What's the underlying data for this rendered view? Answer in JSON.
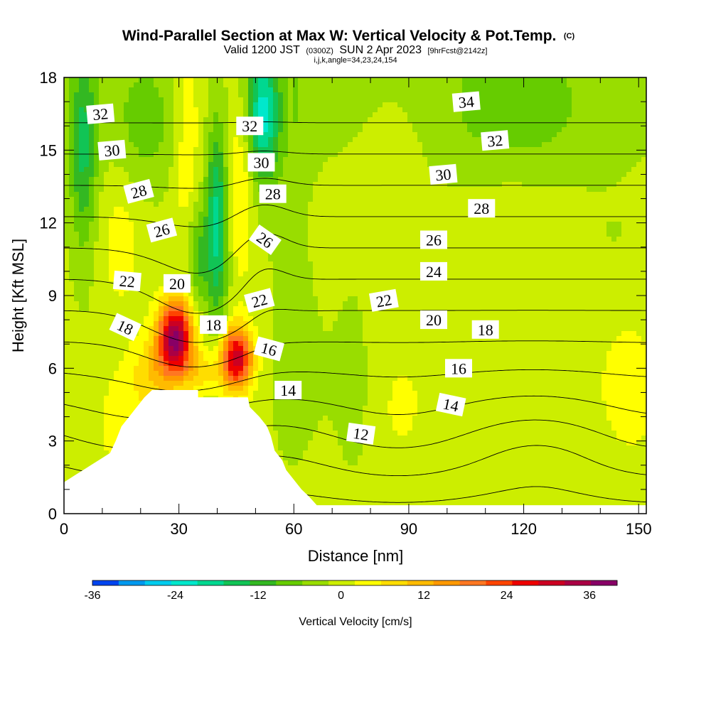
{
  "chart_data": {
    "type": "heatmap",
    "title": {
      "main": "Wind-Parallel Section at Max W: Vertical Velocity & Pot.Temp.",
      "copyright": "(C)",
      "valid_prefix": "Valid 1200 JST",
      "valid_utc": "(0300Z)",
      "valid_date": "SUN 2 Apr 2023",
      "forecast": "[9hrFcst@2142z]",
      "indices": "i,j,k,angle=34,23,24,154"
    },
    "xlabel": "Distance [nm]",
    "ylabel": "Height [Kft MSL]",
    "xlim": [
      0,
      152
    ],
    "ylim": [
      0,
      18
    ],
    "xticks": [
      "0",
      "30",
      "60",
      "90",
      "120",
      "150"
    ],
    "yticks": [
      "0",
      "3",
      "6",
      "9",
      "12",
      "15",
      "18"
    ],
    "xtick_values": [
      0,
      30,
      60,
      90,
      120,
      150
    ],
    "ytick_values": [
      0,
      3,
      6,
      9,
      12,
      15,
      18
    ],
    "colorbar": {
      "title": "Vertical Velocity [cm/s]",
      "min": -36,
      "max": 40,
      "step": 4,
      "labels": [
        "-36",
        "-24",
        "-12",
        "0",
        "12",
        "24",
        "36"
      ],
      "label_values": [
        -36,
        -24,
        -12,
        0,
        12,
        24,
        36
      ],
      "colors": [
        "#0000ee",
        "#0044ee",
        "#0099ee",
        "#00ccee",
        "#00e8cc",
        "#00d890",
        "#11c455",
        "#33b822",
        "#66cc00",
        "#99dd00",
        "#ccee00",
        "#ffff00",
        "#ffdd00",
        "#ffbb00",
        "#ff9900",
        "#ff7722",
        "#ff4400",
        "#ee0000",
        "#cc0022",
        "#aa0044",
        "#880066",
        "#660099"
      ]
    },
    "terrain_profile": [
      [
        0,
        1.3
      ],
      [
        3,
        1.6
      ],
      [
        6,
        1.9
      ],
      [
        9,
        2.2
      ],
      [
        12,
        2.5
      ],
      [
        13.5,
        3.0
      ],
      [
        15,
        3.6
      ],
      [
        17,
        4.0
      ],
      [
        19,
        4.4
      ],
      [
        21,
        4.8
      ],
      [
        23,
        5.1
      ],
      [
        26,
        5.1
      ],
      [
        28,
        5.1
      ],
      [
        35,
        5.1
      ],
      [
        35,
        4.8
      ],
      [
        40,
        4.8
      ],
      [
        45,
        4.8
      ],
      [
        48,
        4.8
      ],
      [
        48.5,
        4.4
      ],
      [
        51,
        4.0
      ],
      [
        53,
        3.6
      ],
      [
        54,
        3.2
      ],
      [
        55,
        2.6
      ],
      [
        57,
        2.2
      ],
      [
        58,
        1.8
      ],
      [
        60,
        1.4
      ],
      [
        62,
        1.0
      ],
      [
        64,
        0.7
      ],
      [
        66,
        0.35
      ],
      [
        68,
        0.35
      ],
      [
        70,
        0.35
      ],
      [
        150,
        0.35
      ]
    ],
    "vertical_velocity_features": [
      {
        "x": 29,
        "z": 7.2,
        "sx": 3.2,
        "sz": 1.1,
        "amp": 40
      },
      {
        "x": 45,
        "z": 6.4,
        "sx": 3.0,
        "sz": 0.9,
        "amp": 33
      },
      {
        "x": 22,
        "z": 5.6,
        "sx": 4.5,
        "sz": 1.2,
        "amp": 10
      },
      {
        "x": 36,
        "z": 5.8,
        "sx": 3.0,
        "sz": 0.6,
        "amp": 7
      },
      {
        "x": 13,
        "z": 4.0,
        "sx": 3.0,
        "sz": 1.5,
        "amp": 5
      },
      {
        "x": 32,
        "z": 15.0,
        "sx": 2.5,
        "sz": 3.5,
        "amp": 6
      },
      {
        "x": 40,
        "z": 12.0,
        "sx": 2.0,
        "sz": 3.0,
        "amp": -18
      },
      {
        "x": 35,
        "z": 10.5,
        "sx": 2.0,
        "sz": 1.5,
        "amp": -10
      },
      {
        "x": 52,
        "z": 16.5,
        "sx": 3.0,
        "sz": 2.0,
        "amp": -22
      },
      {
        "x": 46,
        "z": 13.0,
        "sx": 2.5,
        "sz": 2.5,
        "amp": 8
      },
      {
        "x": 5,
        "z": 15.0,
        "sx": 2.5,
        "sz": 3.0,
        "amp": -14
      },
      {
        "x": 22,
        "z": 16.0,
        "sx": 6.0,
        "sz": 2.0,
        "amp": -6
      },
      {
        "x": 15,
        "z": 11.0,
        "sx": 3.0,
        "sz": 2.0,
        "amp": 4
      },
      {
        "x": 60,
        "z": 10.0,
        "sx": 4.0,
        "sz": 6.0,
        "amp": -4
      },
      {
        "x": 85,
        "z": 13.0,
        "sx": 6.0,
        "sz": 2.5,
        "amp": 3
      },
      {
        "x": 118,
        "z": 16.5,
        "sx": 18.0,
        "sz": 1.8,
        "amp": -5
      },
      {
        "x": 148,
        "z": 5.0,
        "sx": 5.0,
        "sz": 2.0,
        "amp": 5
      },
      {
        "x": 88,
        "z": 4.0,
        "sx": 4.0,
        "sz": 1.5,
        "amp": 3
      },
      {
        "x": 110,
        "z": 7.0,
        "sx": 8.0,
        "sz": 2.0,
        "amp": 2
      },
      {
        "x": 75,
        "z": 5.5,
        "sx": 3.0,
        "sz": 3.0,
        "amp": -3
      }
    ],
    "pot_temp_contour_values": [
      10,
      12,
      14,
      16,
      18,
      20,
      22,
      24,
      26,
      28,
      30,
      32,
      34
    ],
    "pot_temp_labels": [
      {
        "text": "32",
        "x": 9.5,
        "z": 16.5,
        "angle": 5
      },
      {
        "text": "30",
        "x": 12.5,
        "z": 15.0,
        "angle": 5
      },
      {
        "text": "28",
        "x": 19.5,
        "z": 13.3,
        "angle": 15
      },
      {
        "text": "26",
        "x": 25.5,
        "z": 11.7,
        "angle": 15
      },
      {
        "text": "22",
        "x": 16.5,
        "z": 9.6,
        "angle": -5
      },
      {
        "text": "20",
        "x": 29.5,
        "z": 9.5,
        "angle": 0
      },
      {
        "text": "18",
        "x": 16.0,
        "z": 7.7,
        "angle": -25
      },
      {
        "text": "32",
        "x": 48.5,
        "z": 16.0,
        "angle": 0
      },
      {
        "text": "30",
        "x": 51.5,
        "z": 14.5,
        "angle": 0
      },
      {
        "text": "28",
        "x": 54.5,
        "z": 13.2,
        "angle": 0
      },
      {
        "text": "26",
        "x": 52.5,
        "z": 11.3,
        "angle": -35
      },
      {
        "text": "18",
        "x": 39.0,
        "z": 7.8,
        "angle": 0
      },
      {
        "text": "22",
        "x": 51.0,
        "z": 8.8,
        "angle": 15
      },
      {
        "text": "16",
        "x": 53.5,
        "z": 6.8,
        "angle": -15
      },
      {
        "text": "14",
        "x": 58.5,
        "z": 5.1,
        "angle": 0
      },
      {
        "text": "34",
        "x": 105.0,
        "z": 17.0,
        "angle": 5
      },
      {
        "text": "32",
        "x": 112.5,
        "z": 15.4,
        "angle": 5
      },
      {
        "text": "30",
        "x": 99.0,
        "z": 14.0,
        "angle": 5
      },
      {
        "text": "28",
        "x": 109.0,
        "z": 12.6,
        "angle": 0
      },
      {
        "text": "26",
        "x": 96.5,
        "z": 11.3,
        "angle": 0
      },
      {
        "text": "24",
        "x": 96.5,
        "z": 10.0,
        "angle": 0
      },
      {
        "text": "22",
        "x": 83.5,
        "z": 8.8,
        "angle": 10
      },
      {
        "text": "20",
        "x": 96.5,
        "z": 8.0,
        "angle": 0
      },
      {
        "text": "18",
        "x": 110.0,
        "z": 7.6,
        "angle": 0
      },
      {
        "text": "16",
        "x": 103.0,
        "z": 6.0,
        "angle": 0
      },
      {
        "text": "14",
        "x": 101.0,
        "z": 4.5,
        "angle": -12
      },
      {
        "text": "12",
        "x": 77.5,
        "z": 3.3,
        "angle": -8
      }
    ]
  }
}
